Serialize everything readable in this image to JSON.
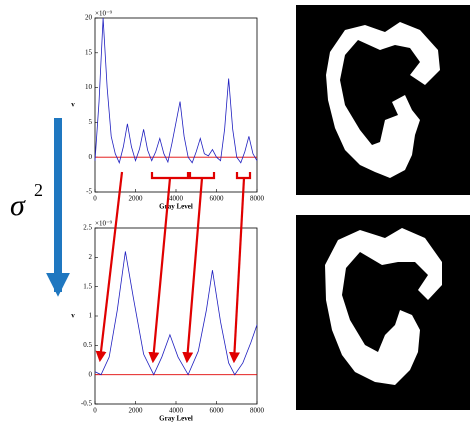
{
  "annotation": {
    "symbol": "σ",
    "superscript": "2"
  },
  "chart_data": [
    {
      "type": "line",
      "xlabel": "Gray Level",
      "ylabel": "v",
      "y_multiplier": "×10⁻⁹",
      "xlim": [
        0,
        8000
      ],
      "xticks": [
        0,
        2000,
        4000,
        6000,
        8000
      ],
      "ylim": [
        -5,
        20
      ],
      "yticks": [
        -5,
        0,
        5,
        10,
        15,
        20
      ],
      "threshold": 0,
      "threshold_color": "#e00000",
      "series": [
        {
          "color": "#2020c0",
          "x": [
            0,
            200,
            400,
            600,
            800,
            1000,
            1200,
            1400,
            1600,
            1800,
            2000,
            2200,
            2400,
            2600,
            2800,
            3000,
            3200,
            3400,
            3600,
            3800,
            4000,
            4200,
            4400,
            4600,
            4800,
            5000,
            5200,
            5400,
            5600,
            5800,
            6000,
            6200,
            6400,
            6600,
            6800,
            7000,
            7200,
            7400,
            7600,
            7800,
            8000
          ],
          "values": [
            -0.5,
            8,
            20,
            10,
            3,
            0.5,
            -0.8,
            1.5,
            4.8,
            1.5,
            -0.5,
            1.2,
            4,
            1,
            -0.5,
            0.8,
            2.7,
            0.5,
            -0.7,
            2,
            5,
            8,
            3,
            0,
            -0.8,
            0.8,
            2.7,
            0.5,
            0.2,
            1.1,
            0,
            -0.5,
            4,
            11.3,
            4,
            0,
            -0.8,
            0.8,
            3,
            0.5,
            -0.5
          ]
        }
      ]
    },
    {
      "type": "line",
      "xlabel": "Gray Level",
      "ylabel": "v",
      "y_multiplier": "×10⁻⁹",
      "xlim": [
        0,
        8000
      ],
      "xticks": [
        0,
        2000,
        4000,
        6000,
        8000
      ],
      "ylim": [
        -0.5,
        2.5
      ],
      "yticks": [
        -0.5,
        0,
        0.5,
        1,
        1.5,
        2,
        2.5
      ],
      "threshold": 0,
      "threshold_color": "#e00000",
      "series": [
        {
          "color": "#2020c0",
          "x": [
            0,
            300,
            700,
            1100,
            1500,
            1900,
            2400,
            2900,
            3300,
            3700,
            4100,
            4600,
            5100,
            5500,
            5800,
            6200,
            6600,
            6900,
            7300,
            7700,
            8000
          ],
          "values": [
            0.05,
            0,
            0.3,
            1.1,
            2.1,
            1.3,
            0.35,
            0,
            0.3,
            0.68,
            0.3,
            0,
            0.4,
            1.1,
            1.78,
            0.9,
            0.2,
            0,
            0.2,
            0.55,
            0.85
          ]
        }
      ]
    }
  ]
}
